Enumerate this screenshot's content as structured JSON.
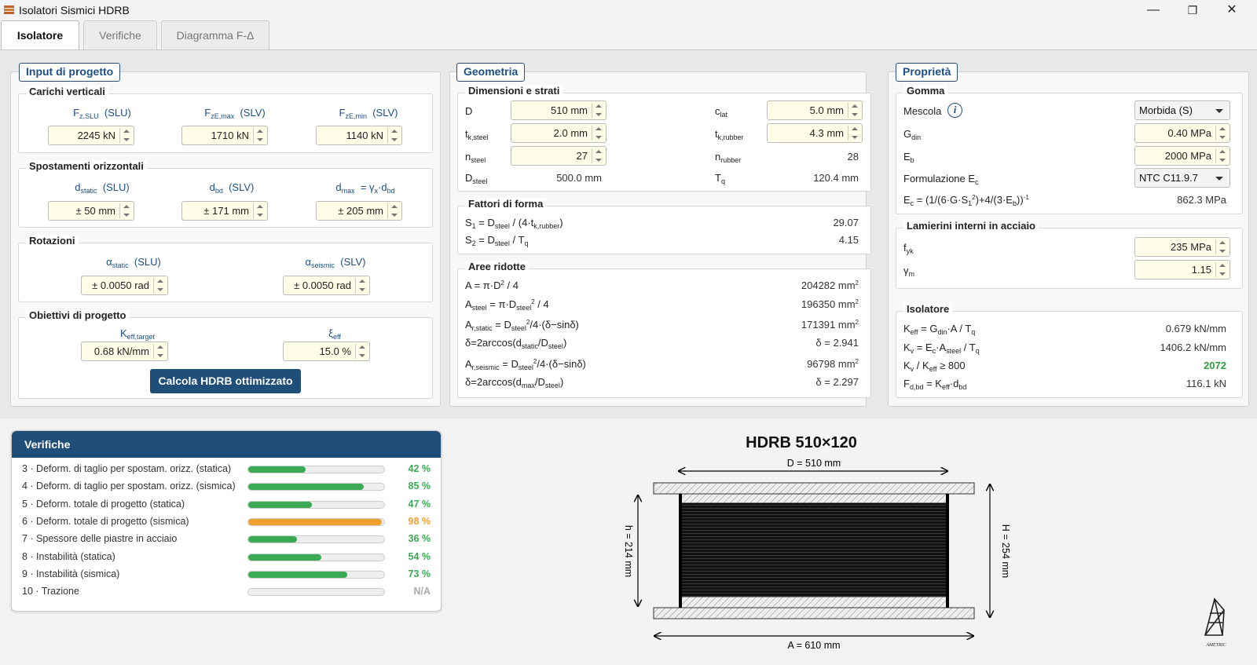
{
  "window": {
    "title": "Isolatori Sismici HDRB",
    "minimize": "—",
    "maximize": "❐",
    "close": "✕"
  },
  "tabs": [
    "Isolatore",
    "Verifiche",
    "Diagramma F-Δ"
  ],
  "input": {
    "title": "Input di progetto",
    "carichi": {
      "title": "Carichi verticali",
      "cols": [
        {
          "sym": "F",
          "sub": "z,SLU",
          "tag": "(SLU)",
          "value": "2245 kN"
        },
        {
          "sym": "F",
          "sub": "zE,max",
          "tag": "(SLV)",
          "value": "1710 kN"
        },
        {
          "sym": "F",
          "sub": "zE,min",
          "tag": "(SLV)",
          "value": "1140 kN"
        }
      ]
    },
    "spostamenti": {
      "title": "Spostamenti orizzontali",
      "cols": [
        {
          "sym": "d",
          "sub": "static",
          "tag": "(SLU)",
          "value": "± 50 mm"
        },
        {
          "sym": "d",
          "sub": "bd",
          "tag": "(SLV)",
          "value": "± 171 mm"
        },
        {
          "sym": "d",
          "sub": "max",
          "tag": "= γ",
          "sub2": "x",
          "tag2": "·d",
          "sub3": "bd",
          "value": "± 205 mm"
        }
      ]
    },
    "rotazioni": {
      "title": "Rotazioni",
      "cols": [
        {
          "sym": "α",
          "sub": "static",
          "tag": "(SLU)",
          "value": "± 0.0050 rad"
        },
        {
          "sym": "α",
          "sub": "seismic",
          "tag": "(SLV)",
          "value": "± 0.0050 rad"
        }
      ]
    },
    "obiettivi": {
      "title": "Obiettivi di progetto",
      "cols": [
        {
          "sym": "K",
          "sub": "eff,target",
          "value": "0.68 kN/mm"
        },
        {
          "sym": "ξ",
          "sub": "eff",
          "value": "15.0 %"
        }
      ]
    },
    "button": "Calcola HDRB ottimizzato"
  },
  "geometria": {
    "title": "Geometria",
    "dimensioni": {
      "title": "Dimensioni e strati",
      "D": {
        "label": "D",
        "value": "510 mm"
      },
      "clat": {
        "label": "c",
        "sub": "lat",
        "value": "5.0 mm"
      },
      "tksteel": {
        "label": "t",
        "sub": "k,steel",
        "value": "2.0 mm"
      },
      "tkrubber": {
        "label": "t",
        "sub": "k,rubber",
        "value": "4.3 mm"
      },
      "nsteel": {
        "label": "n",
        "sub": "steel",
        "value": "27"
      },
      "nrubber": {
        "label": "n",
        "sub": "rubber",
        "value": "28"
      },
      "Dsteel": {
        "label": "D",
        "sub": "steel",
        "value": "500.0 mm"
      },
      "Tq": {
        "label": "T",
        "sub": "q",
        "value": "120.4 mm"
      }
    },
    "fattori": {
      "title": "Fattori di forma",
      "S1": "29.07",
      "S2": "4.15"
    },
    "aree": {
      "title": "Aree ridotte",
      "A": "204282 mm",
      "Asteel": "196350 mm",
      "Arstatic": "171391 mm",
      "dstatic": "δ = 2.941",
      "Arseismic": "96798 mm",
      "dseismic": "δ = 2.297"
    }
  },
  "proprieta": {
    "title": "Proprietà",
    "gomma": {
      "title": "Gomma",
      "mescola_label": "Mescola",
      "mescola": "Morbida (S)",
      "Gdin": "0.40 MPa",
      "Eb": "2000 MPa",
      "form_label": "Formulazione E",
      "form": "NTC C11.9.7",
      "Ec": "862.3 MPa"
    },
    "lamierini": {
      "title": "Lamierini interni in acciaio",
      "fyk": "235 MPa",
      "gm": "1.15"
    },
    "isolatore": {
      "title": "Isolatore",
      "Keff": "0.679 kN/mm",
      "Kv": "1406.2 kN/mm",
      "ratio": "2072",
      "Fdbd": "116.1 kN"
    }
  },
  "verifiche": {
    "title": "Verifiche",
    "rows": [
      {
        "label": "3 · Deform. di taglio per spostam. orizz. (statica)",
        "pct": "42 %",
        "value": 0.42,
        "color": "#3aaa55"
      },
      {
        "label": "4 · Deform. di taglio per spostam. orizz. (sismica)",
        "pct": "85 %",
        "value": 0.85,
        "color": "#3aaa55"
      },
      {
        "label": "5 · Deform. totale di progetto (statica)",
        "pct": "47 %",
        "value": 0.47,
        "color": "#3aaa55"
      },
      {
        "label": "6 · Deform. totale di progetto (sismica)",
        "pct": "98 %",
        "value": 0.98,
        "color": "#f0a030"
      },
      {
        "label": "7 · Spessore delle piastre in acciaio",
        "pct": "36 %",
        "value": 0.36,
        "color": "#3aaa55"
      },
      {
        "label": "8 · Instabilità (statica)",
        "pct": "54 %",
        "value": 0.54,
        "color": "#3aaa55"
      },
      {
        "label": "9 · Instabilità (sismica)",
        "pct": "73 %",
        "value": 0.73,
        "color": "#3aaa55"
      },
      {
        "label": "10 · Trazione",
        "pct": "N/A",
        "value": 0,
        "color": "#aaaaaa"
      }
    ]
  },
  "drawing": {
    "title": "HDRB 510×120",
    "D": "D = 510 mm",
    "A": "A = 610 mm",
    "h": "h = 214 mm",
    "H": "H = 254 mm"
  },
  "logo": "AMETRIC",
  "colors": {
    "accent": "#1f4e79",
    "ok": "#3aaa55",
    "warn": "#f0a030",
    "input_bg": "#fffde7"
  }
}
